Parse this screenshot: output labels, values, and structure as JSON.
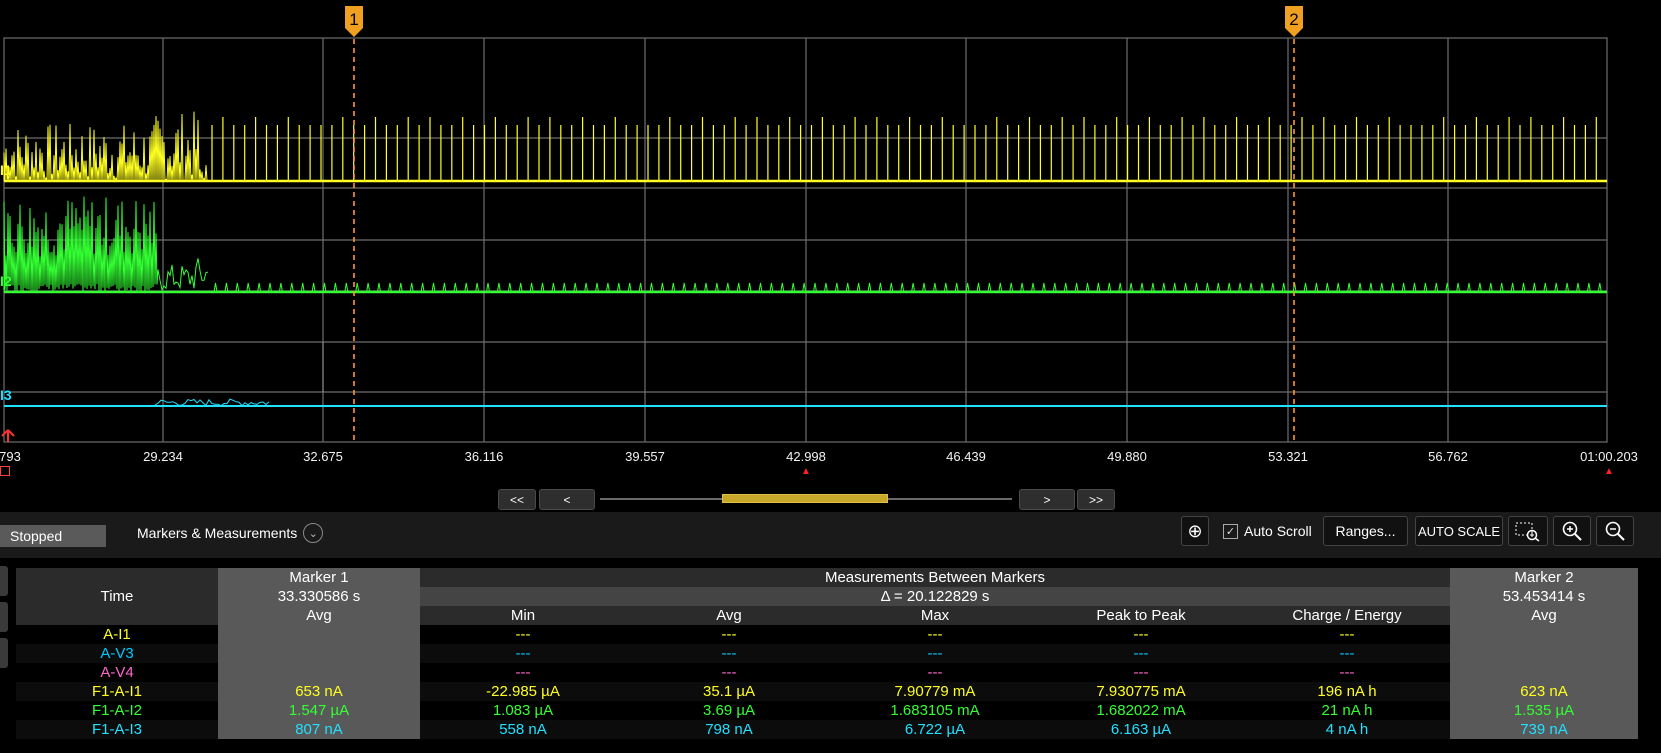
{
  "scope": {
    "x_ticks": [
      "793",
      "29.234",
      "32.675",
      "36.116",
      "39.557",
      "42.998",
      "46.439",
      "49.880",
      "53.321",
      "56.762",
      "01:00.203"
    ],
    "markers": [
      {
        "label": "1",
        "time": "33.330586 s"
      },
      {
        "label": "2",
        "time": "53.453414 s"
      }
    ],
    "traces": [
      {
        "label": "I1",
        "color": "#ffff22"
      },
      {
        "label": "I2",
        "color": "#33ff33"
      },
      {
        "label": "I3",
        "color": "#22e0ff"
      }
    ],
    "grid_color": "#6e6e6e"
  },
  "nav": {
    "first": "<<",
    "prev": "<",
    "next": ">",
    "last": ">>"
  },
  "toolbar": {
    "status": "Stopped",
    "markers_measurements": "Markers & Measurements",
    "auto_scroll": "Auto Scroll",
    "auto_scroll_checked": true,
    "ranges": "Ranges...",
    "auto_scale": "AUTO SCALE"
  },
  "table": {
    "time_label": "Time",
    "marker1_title": "Marker 1",
    "marker1_time": "33.330586 s",
    "marker1_avg": "Avg",
    "between_title": "Measurements Between Markers",
    "delta": "Δ = 20.122829 s",
    "columns": [
      "Min",
      "Avg",
      "Max",
      "Peak to Peak",
      "Charge / Energy"
    ],
    "marker2_title": "Marker 2",
    "marker2_time": "53.453414 s",
    "marker2_avg": "Avg",
    "rows": [
      {
        "name": "A-I1",
        "color": "yellow",
        "m1": "",
        "vals": [
          "---",
          "---",
          "---",
          "---",
          "---"
        ],
        "m2": ""
      },
      {
        "name": "A-V3",
        "color": "blue",
        "m1": "",
        "vals": [
          "---",
          "---",
          "---",
          "---",
          "---"
        ],
        "m2": ""
      },
      {
        "name": "A-V4",
        "color": "pink",
        "m1": "",
        "vals": [
          "---",
          "---",
          "---",
          "---",
          "---"
        ],
        "m2": ""
      },
      {
        "name": "F1-A-I1",
        "color": "yellow",
        "m1": "653 nA",
        "vals": [
          "-22.985 µA",
          "35.1 µA",
          "7.90779 mA",
          "7.930775 mA",
          "196 nA h"
        ],
        "m2": "623 nA"
      },
      {
        "name": "F1-A-I2",
        "color": "green",
        "m1": "1.547 µA",
        "vals": [
          "1.083 µA",
          "3.69 µA",
          "1.683105 mA",
          "1.682022 mA",
          "21 nA h"
        ],
        "m2": "1.535 µA"
      },
      {
        "name": "F1-A-I3",
        "color": "cyan",
        "m1": "807 nA",
        "vals": [
          "558 nA",
          "798 nA",
          "6.722 µA",
          "6.163 µA",
          "4 nA h"
        ],
        "m2": "739 nA"
      }
    ]
  }
}
